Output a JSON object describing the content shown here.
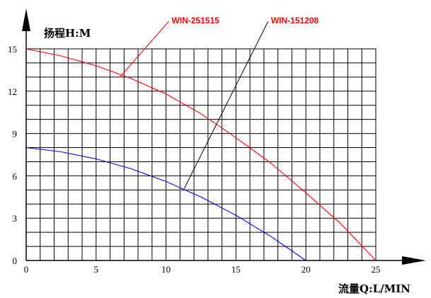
{
  "chart_data": {
    "type": "line",
    "ylabel": "扬程H:M",
    "xlabel": "流量Q:L/MIN",
    "xlim": [
      0,
      25
    ],
    "ylim": [
      0,
      15
    ],
    "x_ticks": [
      0,
      5,
      10,
      15,
      20,
      25
    ],
    "y_ticks": [
      0,
      3,
      6,
      9,
      12,
      15
    ],
    "grid": true,
    "series": [
      {
        "name": "WIN-251515",
        "color": "#ff0000",
        "x": [
          0,
          2.5,
          5,
          7.5,
          10,
          12.5,
          15,
          17.5,
          20,
          22.5,
          25
        ],
        "y": [
          15.0,
          14.5,
          13.8,
          12.9,
          11.8,
          10.4,
          8.7,
          6.9,
          4.8,
          2.6,
          0
        ]
      },
      {
        "name": "WIN-151208",
        "color": "#0000ff",
        "x": [
          0,
          2.5,
          5,
          7.5,
          10,
          12.5,
          15,
          17.5,
          20
        ],
        "y": [
          8.0,
          7.7,
          7.2,
          6.5,
          5.6,
          4.5,
          3.2,
          1.7,
          0
        ]
      }
    ],
    "annotations": [
      {
        "text": "WIN-251515",
        "color": "#ff0000",
        "target": [
          6.7,
          13.0
        ],
        "label_at": [
          10.2,
          17.1
        ]
      },
      {
        "text": "WIN-151208",
        "color": "#000000",
        "target": [
          11.3,
          5.1
        ],
        "label_at": [
          17.3,
          17.1
        ]
      }
    ]
  }
}
